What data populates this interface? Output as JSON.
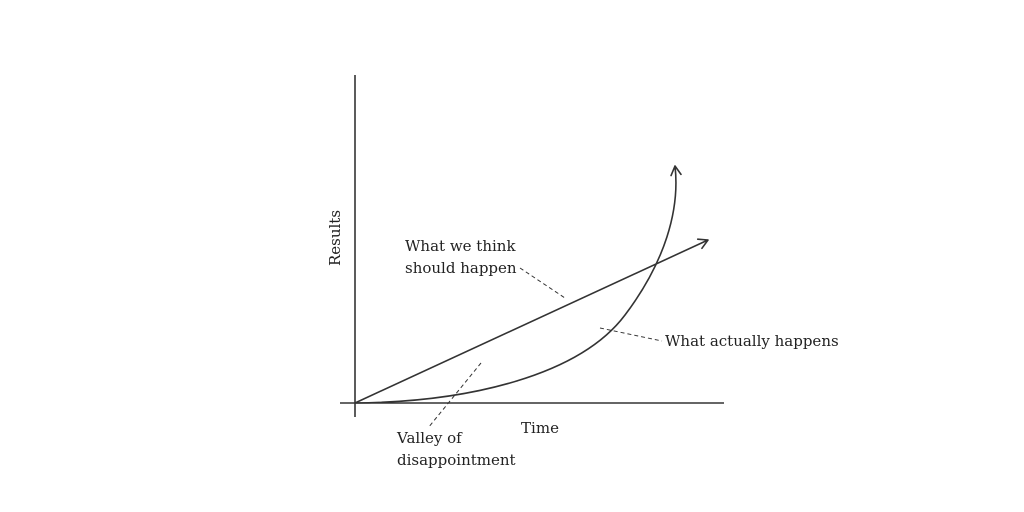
{
  "diagram": {
    "axes": {
      "x_label": "Time",
      "y_label": "Results"
    },
    "labels": {
      "expected": [
        "What we think",
        "should happen"
      ],
      "actual": "What actually happens",
      "valley": [
        "Valley of",
        "disappointment"
      ]
    },
    "colors": {
      "stroke": "#333333",
      "text": "#222222",
      "background": "#ffffff"
    }
  }
}
